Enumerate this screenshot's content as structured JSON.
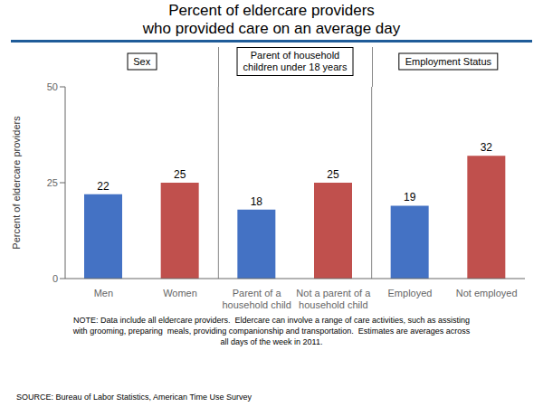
{
  "chart_data": {
    "type": "bar",
    "title": "Percent of eldercare providers\nwho provided care on an average day",
    "ylabel": "Percent of eldercare providers",
    "categories": [
      "Men",
      "Women",
      "Parent of a\nhousehold child",
      "Not a parent of a\nhousehold child",
      "Employed",
      "Not employed"
    ],
    "values": [
      22,
      25,
      18,
      25,
      19,
      32
    ],
    "colors": [
      "#4472C4",
      "#C0504D",
      "#4472C4",
      "#C0504D",
      "#4472C4",
      "#C0504D"
    ],
    "ylim": [
      0,
      50
    ],
    "yticks": [
      0,
      25,
      50
    ],
    "data_labels": true,
    "grid": false,
    "annotations": [
      "Sex",
      "Parent of household\nchildren under 18 years",
      "Employment Status",
      "NOTE: Data include all eldercare providers.  Eldercare can involve a range of care activities, such as assisting\nwith grooming, preparing  meals, providing companionship and transportation.  Estimates are averages across\nall days of the week in 2011.",
      "SOURCE: Bureau of Labor Statistics, American Time Use Survey"
    ]
  }
}
